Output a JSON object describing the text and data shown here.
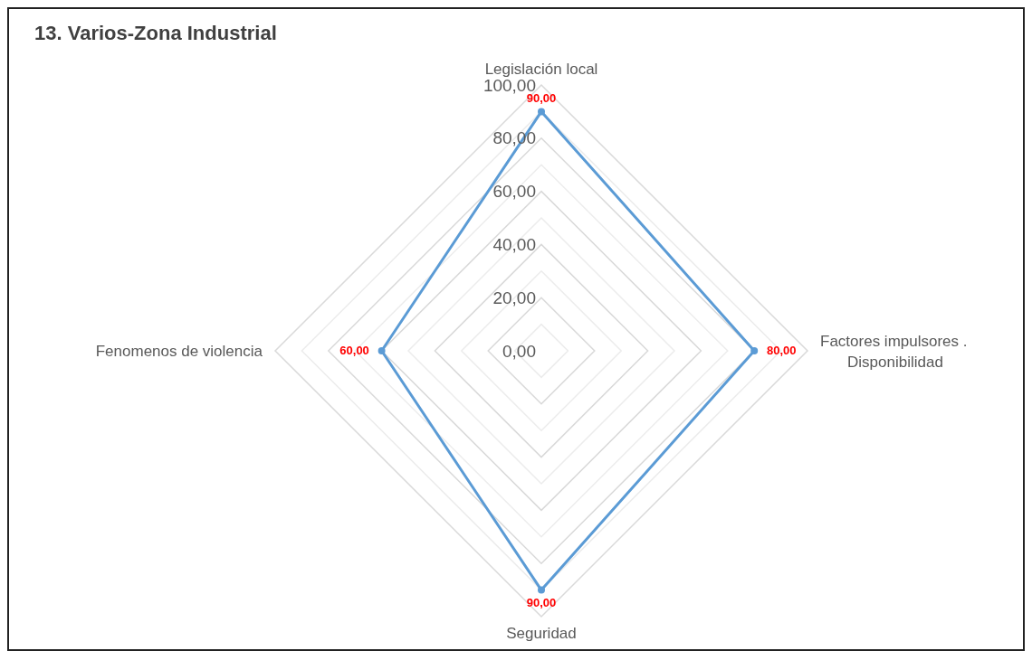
{
  "chart_data": {
    "type": "radar",
    "title": "13. Varios-Zona Industrial",
    "categories": [
      "Legislación local",
      "Factores impulsores .\nDisponibilidad",
      "Seguridad",
      "Fenomenos de violencia"
    ],
    "series": [
      {
        "color": "#5b9bd5",
        "values": [
          90,
          80,
          90,
          60
        ],
        "value_labels": [
          "90,00",
          "80,00",
          "90,00",
          "60,00"
        ]
      }
    ],
    "ylim": [
      0,
      100
    ],
    "yticks": [
      {
        "value": 0,
        "label": "0,00"
      },
      {
        "value": 20,
        "label": "20,00"
      },
      {
        "value": 40,
        "label": "40,00"
      },
      {
        "value": 60,
        "label": "60,00"
      },
      {
        "value": 80,
        "label": "80,00"
      },
      {
        "value": 100,
        "label": "100,00"
      }
    ],
    "grid": true,
    "marker": "circle"
  }
}
